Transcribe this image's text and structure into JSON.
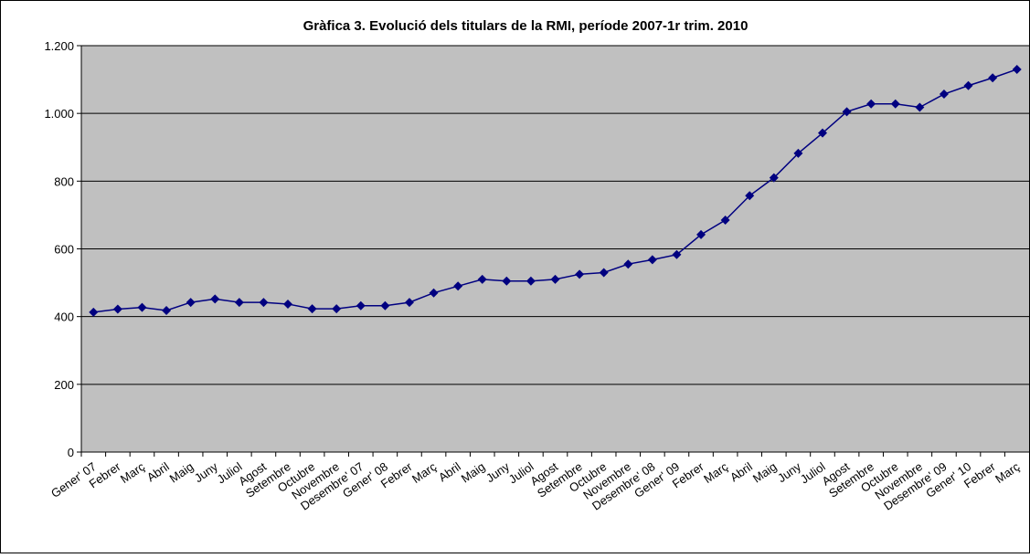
{
  "chart_data": {
    "type": "line",
    "title": "Gràfica 3. Evolució dels titulars de la RMI, període 2007-1r trim. 2010",
    "categories": [
      "Gener' 07",
      "Febrer",
      "Març",
      "Abril",
      "Maig",
      "Juny",
      "Juliol",
      "Agost",
      "Setembre",
      "Octubre",
      "Novembre",
      "Desembre' 07",
      "Gener' 08",
      "Febrer",
      "Març",
      "Abril",
      "Maig",
      "Juny",
      "Juliol",
      "Agost",
      "Setembre",
      "Octubre",
      "Novembre",
      "Desembre' 08",
      "Gener' 09",
      "Febrer",
      "Març",
      "Abril",
      "Maig",
      "Juny",
      "Juliol",
      "Agost",
      "Setembre",
      "Octubre",
      "Novembre",
      "Desembre' 09",
      "Gener' 10",
      "Febrer",
      "Març"
    ],
    "values": [
      413,
      422,
      427,
      418,
      442,
      452,
      442,
      442,
      437,
      423,
      423,
      432,
      432,
      442,
      470,
      490,
      510,
      505,
      505,
      510,
      525,
      530,
      555,
      568,
      583,
      642,
      685,
      757,
      810,
      882,
      942,
      1005,
      1028,
      1028,
      1018,
      1057,
      1082,
      1105,
      1130
    ],
    "color": "#000080",
    "ylim": [
      0,
      1200
    ],
    "yticks": [
      0,
      200,
      400,
      600,
      800,
      {
        "value": 1000,
        "label": "1.000"
      },
      {
        "value": 1200,
        "label": "1.200"
      }
    ],
    "grid": true
  }
}
